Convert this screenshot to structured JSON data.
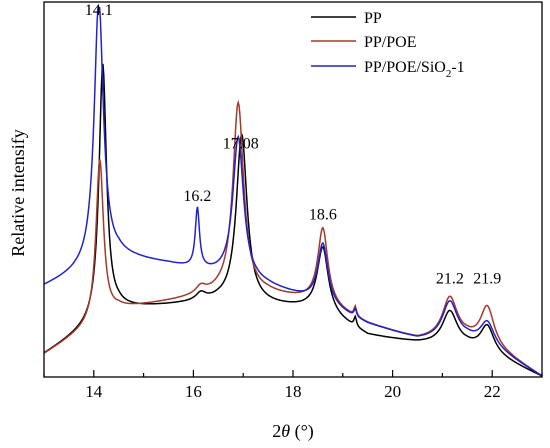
{
  "chart_data": {
    "type": "line",
    "title": "",
    "xlabel": {
      "prefix": "2",
      "var": "θ",
      "unit": " (°)"
    },
    "ylabel": "Relative intensify",
    "xlim": [
      13,
      23
    ],
    "ylim": [
      0,
      1
    ],
    "xticks": [
      14,
      16,
      18,
      20,
      22
    ],
    "yticks_shown": false,
    "grid": false,
    "legend": {
      "placement": "top-right",
      "entries": [
        {
          "label": "PP",
          "series": 0
        },
        {
          "label": "PP/POE",
          "series": 1
        },
        {
          "label_parts": [
            "PP/POE/SiO",
            "2",
            "-1"
          ],
          "series": 2
        }
      ]
    },
    "annotations": [
      {
        "text": "14.1",
        "x": 14.1,
        "y": 0.965
      },
      {
        "text": "16.2",
        "x": 16.08,
        "y": 0.47
      },
      {
        "text": "17.08",
        "x": 16.95,
        "y": 0.61
      },
      {
        "text": "18.6",
        "x": 18.6,
        "y": 0.42
      },
      {
        "text": "21.2",
        "x": 21.15,
        "y": 0.25
      },
      {
        "text": "21.9",
        "x": 21.9,
        "y": 0.25
      }
    ],
    "series": [
      {
        "name": "PP",
        "color": "#000000",
        "base": [
          [
            13.0,
            0.06
          ],
          [
            14.5,
            0.18
          ],
          [
            15.5,
            0.19
          ],
          [
            16.5,
            0.2
          ],
          [
            17.5,
            0.19
          ],
          [
            18.5,
            0.18
          ],
          [
            19.5,
            0.11
          ],
          [
            20.5,
            0.09
          ],
          [
            21.5,
            0.08
          ],
          [
            22.0,
            0.06
          ],
          [
            23.0,
            0.0
          ]
        ],
        "peaks": [
          [
            14.18,
            0.68,
            0.09
          ],
          [
            16.15,
            0.02,
            0.12
          ],
          [
            16.97,
            0.45,
            0.13
          ],
          [
            18.6,
            0.17,
            0.13
          ],
          [
            19.25,
            0.025,
            0.03
          ],
          [
            21.15,
            0.09,
            0.18
          ],
          [
            21.9,
            0.07,
            0.16
          ]
        ]
      },
      {
        "name": "PP/POE",
        "color": "#a33a2a",
        "base": [
          [
            13.0,
            0.06
          ],
          [
            14.5,
            0.18
          ],
          [
            15.5,
            0.2
          ],
          [
            16.5,
            0.22
          ],
          [
            17.5,
            0.22
          ],
          [
            18.5,
            0.2
          ],
          [
            19.5,
            0.14
          ],
          [
            20.5,
            0.1
          ],
          [
            21.5,
            0.1
          ],
          [
            22.0,
            0.08
          ],
          [
            23.0,
            0.0
          ]
        ],
        "peaks": [
          [
            14.12,
            0.43,
            0.09
          ],
          [
            16.15,
            0.02,
            0.12
          ],
          [
            16.9,
            0.51,
            0.13
          ],
          [
            18.6,
            0.2,
            0.12
          ],
          [
            19.25,
            0.025,
            0.03
          ],
          [
            21.15,
            0.11,
            0.18
          ],
          [
            21.9,
            0.1,
            0.16
          ]
        ]
      },
      {
        "name": "PP/POE/SiO2-1",
        "color": "#2222cc",
        "base": [
          [
            13.0,
            0.24
          ],
          [
            14.5,
            0.32
          ],
          [
            15.5,
            0.3
          ],
          [
            16.5,
            0.27
          ],
          [
            17.5,
            0.24
          ],
          [
            18.5,
            0.2
          ],
          [
            19.5,
            0.14
          ],
          [
            20.5,
            0.1
          ],
          [
            21.5,
            0.1
          ],
          [
            22.0,
            0.08
          ],
          [
            23.0,
            0.0
          ]
        ],
        "peaks": [
          [
            14.1,
            0.71,
            0.11
          ],
          [
            16.08,
            0.16,
            0.05
          ],
          [
            16.9,
            0.38,
            0.13
          ],
          [
            18.6,
            0.16,
            0.12
          ],
          [
            19.25,
            0.02,
            0.03
          ],
          [
            21.15,
            0.1,
            0.18
          ],
          [
            21.9,
            0.06,
            0.16
          ]
        ]
      }
    ]
  }
}
